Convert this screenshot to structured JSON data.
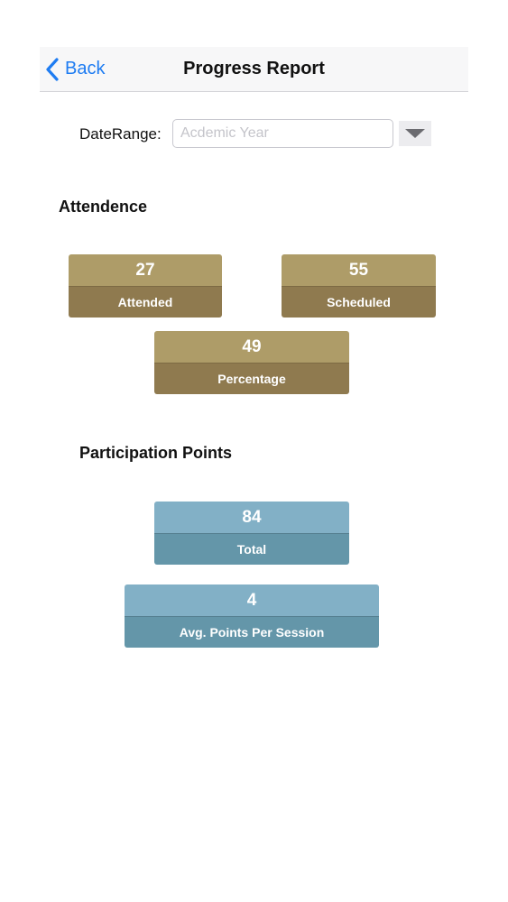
{
  "navbar": {
    "back_label": "Back",
    "title": "Progress Report"
  },
  "date_range": {
    "label": "DateRange:",
    "value": "",
    "placeholder": "Acdemic Year"
  },
  "attendance": {
    "title": "Attendence",
    "attended": {
      "value": "27",
      "label": "Attended"
    },
    "scheduled": {
      "value": "55",
      "label": "Scheduled"
    },
    "percentage": {
      "value": "49",
      "label": "Percentage"
    }
  },
  "participation": {
    "title": "Participation Points",
    "total": {
      "value": "84",
      "label": "Total"
    },
    "avg": {
      "value": "4",
      "label": "Avg. Points Per Session"
    }
  },
  "colors": {
    "accent": "#1e7cf2",
    "attendance_value": "#ae9c68",
    "attendance_label": "#8f7a4f",
    "participation_value": "#82b0c6",
    "participation_label": "#6496a9"
  },
  "icons": {
    "back": "chevron-left-icon",
    "dropdown": "triangle-down-icon"
  }
}
